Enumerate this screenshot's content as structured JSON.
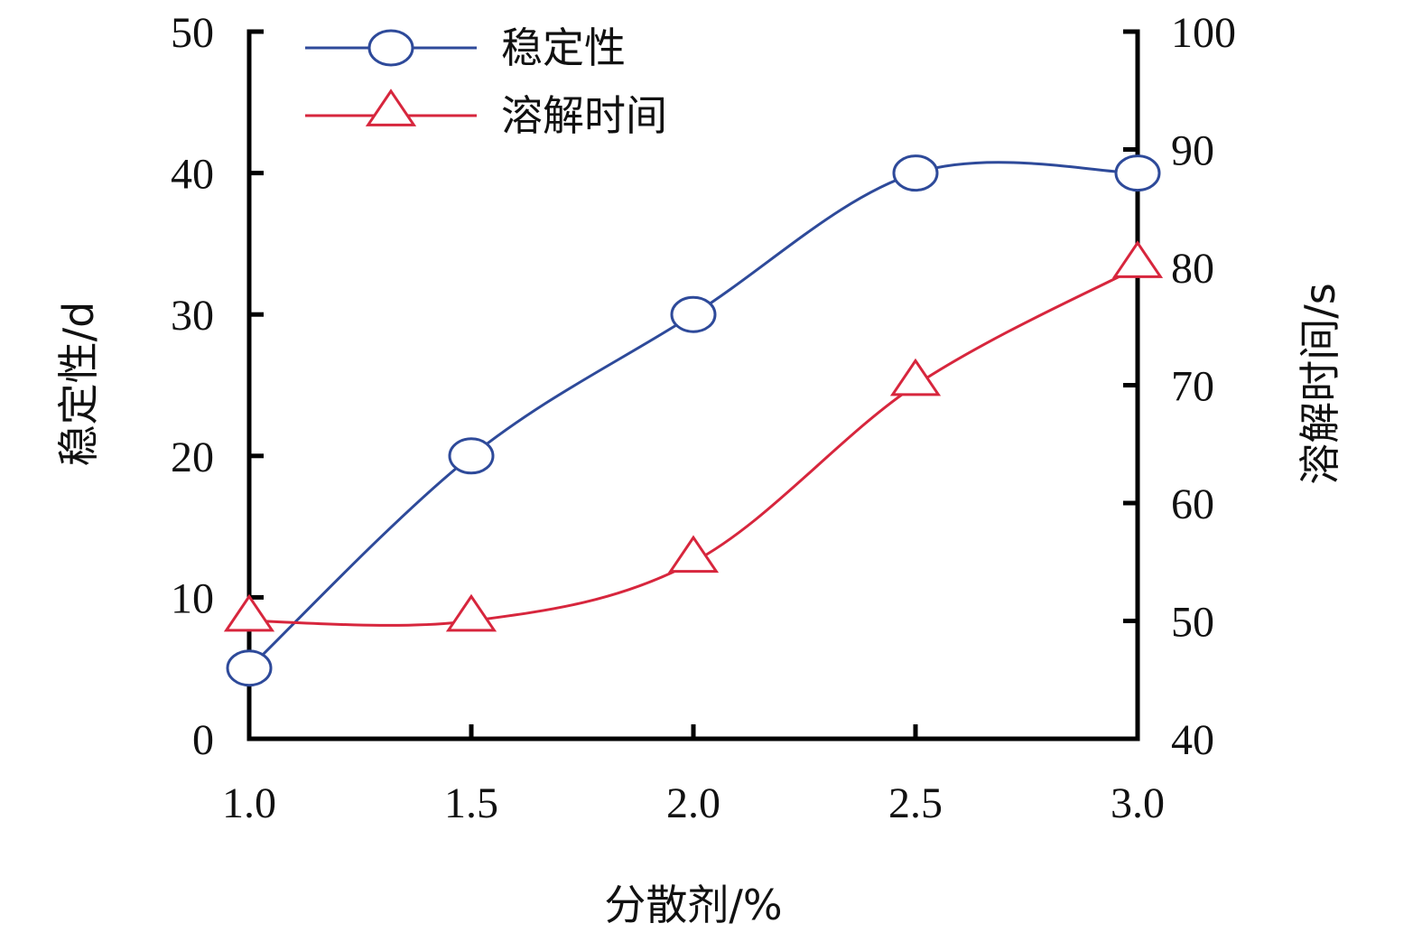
{
  "chart_data": {
    "type": "line",
    "x": [
      1.0,
      1.5,
      2.0,
      2.5,
      3.0
    ],
    "x_tick_labels": [
      "1.0",
      "1.5",
      "2.0",
      "2.5",
      "3.0"
    ],
    "xlabel": "分散剂/%",
    "xlim": [
      1.0,
      3.0
    ],
    "y_left": {
      "label": "稳定性/d",
      "lim": [
        0,
        50
      ],
      "ticks": [
        "0",
        "10",
        "20",
        "30",
        "40",
        "50"
      ]
    },
    "y_right": {
      "label": "溶解时间/s",
      "lim": [
        40,
        100
      ],
      "ticks": [
        "40",
        "50",
        "60",
        "70",
        "80",
        "90",
        "100"
      ]
    },
    "series": [
      {
        "name": "稳定性",
        "axis": "left",
        "values": [
          5,
          20,
          30,
          40,
          40
        ],
        "color": "#2e4a9a",
        "marker": "circle"
      },
      {
        "name": "溶解时间",
        "axis": "right",
        "values": [
          50,
          50,
          55,
          70,
          80
        ],
        "color": "#d7263d",
        "marker": "triangle"
      }
    ],
    "legend": "top-left",
    "grid": false
  }
}
